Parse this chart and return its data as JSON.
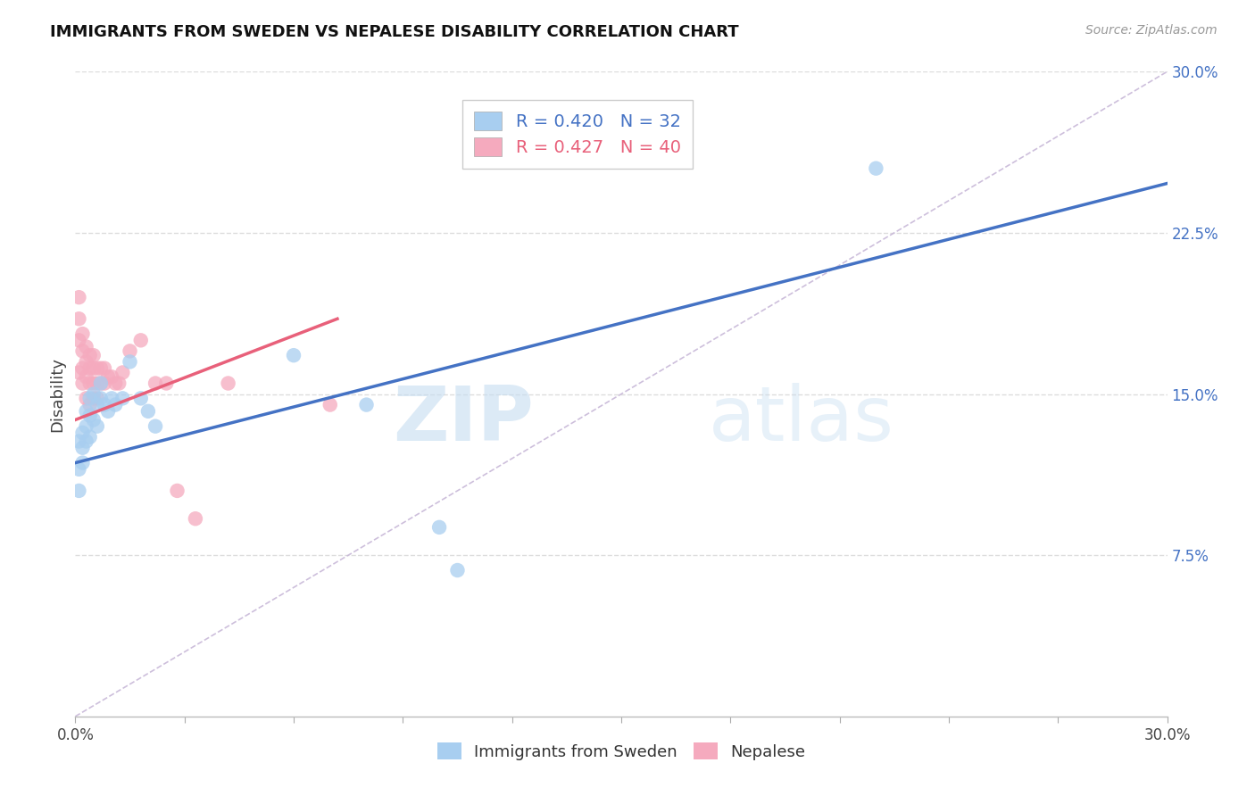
{
  "title": "IMMIGRANTS FROM SWEDEN VS NEPALESE DISABILITY CORRELATION CHART",
  "source": "Source: ZipAtlas.com",
  "ylabel": "Disability",
  "xlim": [
    0.0,
    0.3
  ],
  "ylim": [
    0.0,
    0.3
  ],
  "xticks": [
    0.0,
    0.03,
    0.06,
    0.09,
    0.12,
    0.15,
    0.18,
    0.21,
    0.24,
    0.27,
    0.3
  ],
  "yticks": [
    0.075,
    0.15,
    0.225,
    0.3
  ],
  "ytick_labels": [
    "7.5%",
    "15.0%",
    "22.5%",
    "30.0%"
  ],
  "xtick_label_left": "0.0%",
  "xtick_label_right": "30.0%",
  "blue_color": "#A8CEF0",
  "pink_color": "#F5AABE",
  "blue_line_color": "#4472C4",
  "pink_line_color": "#E8607A",
  "ref_line_color": "#C8B8D8",
  "legend_label_blue": "Immigrants from Sweden",
  "legend_label_pink": "Nepalese",
  "watermark_zip": "ZIP",
  "watermark_atlas": "atlas",
  "blue_x": [
    0.001,
    0.001,
    0.001,
    0.002,
    0.002,
    0.002,
    0.003,
    0.003,
    0.003,
    0.004,
    0.004,
    0.004,
    0.005,
    0.005,
    0.006,
    0.006,
    0.007,
    0.007,
    0.008,
    0.009,
    0.01,
    0.011,
    0.013,
    0.015,
    0.018,
    0.02,
    0.022,
    0.06,
    0.08,
    0.1,
    0.105,
    0.22
  ],
  "blue_y": [
    0.128,
    0.115,
    0.105,
    0.132,
    0.125,
    0.118,
    0.142,
    0.135,
    0.128,
    0.148,
    0.14,
    0.13,
    0.15,
    0.138,
    0.145,
    0.135,
    0.155,
    0.148,
    0.145,
    0.142,
    0.148,
    0.145,
    0.148,
    0.165,
    0.148,
    0.142,
    0.135,
    0.168,
    0.145,
    0.088,
    0.068,
    0.255
  ],
  "pink_x": [
    0.001,
    0.001,
    0.001,
    0.001,
    0.002,
    0.002,
    0.002,
    0.002,
    0.003,
    0.003,
    0.003,
    0.003,
    0.004,
    0.004,
    0.004,
    0.004,
    0.005,
    0.005,
    0.005,
    0.005,
    0.006,
    0.006,
    0.006,
    0.007,
    0.007,
    0.008,
    0.008,
    0.009,
    0.01,
    0.011,
    0.012,
    0.013,
    0.015,
    0.018,
    0.022,
    0.025,
    0.028,
    0.033,
    0.042,
    0.07
  ],
  "pink_y": [
    0.195,
    0.185,
    0.175,
    0.16,
    0.178,
    0.17,
    0.162,
    0.155,
    0.172,
    0.165,
    0.158,
    0.148,
    0.168,
    0.162,
    0.155,
    0.145,
    0.168,
    0.162,
    0.155,
    0.148,
    0.162,
    0.155,
    0.148,
    0.162,
    0.155,
    0.162,
    0.155,
    0.158,
    0.158,
    0.155,
    0.155,
    0.16,
    0.17,
    0.175,
    0.155,
    0.155,
    0.105,
    0.092,
    0.155,
    0.145
  ],
  "blue_line_x": [
    0.0,
    0.3
  ],
  "blue_line_y": [
    0.118,
    0.248
  ],
  "pink_line_x": [
    0.0,
    0.072
  ],
  "pink_line_y": [
    0.138,
    0.185
  ],
  "ref_line_x": [
    0.0,
    0.3
  ],
  "ref_line_y": [
    0.0,
    0.3
  ],
  "background_color": "#FFFFFF",
  "grid_color": "#DDDDDD"
}
